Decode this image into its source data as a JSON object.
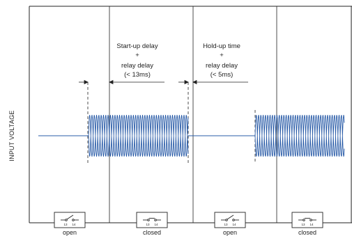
{
  "axis": {
    "ylabel": "INPUT VOLTAGE"
  },
  "annotations": {
    "startup": [
      "Start-up delay",
      "+",
      "relay delay",
      "(< 13ms)"
    ],
    "holdup": [
      "Hold-up time",
      "+",
      "relay delay",
      "(< 5ms)"
    ]
  },
  "relays": [
    {
      "state": "open",
      "contact_a": "13",
      "contact_b": "14",
      "icon": "open-switch-icon"
    },
    {
      "state": "closed",
      "contact_a": "13",
      "contact_b": "14",
      "icon": "closed-switch-icon"
    },
    {
      "state": "open",
      "contact_a": "13",
      "contact_b": "14",
      "icon": "open-switch-icon"
    },
    {
      "state": "closed",
      "contact_a": "13",
      "contact_b": "14",
      "icon": "closed-switch-icon"
    }
  ],
  "colors": {
    "signal": "#2a5ca8",
    "line": "#222222",
    "dashed": "#222222"
  }
}
